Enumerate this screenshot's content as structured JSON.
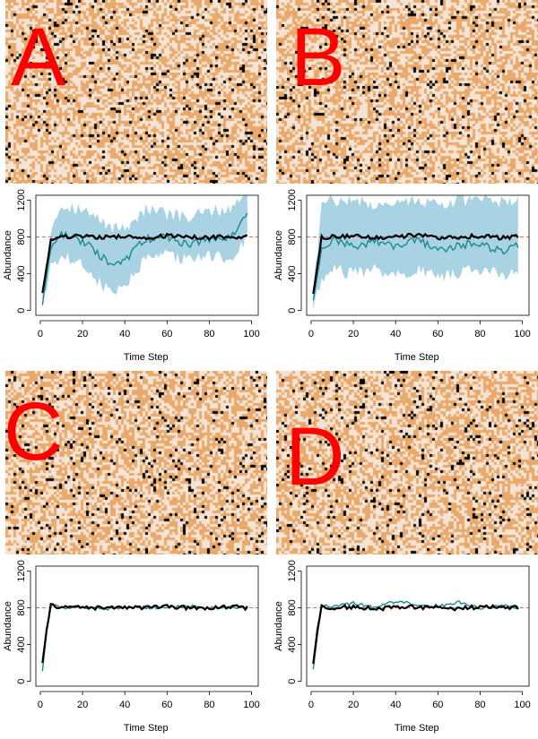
{
  "panels": [
    {
      "letter": "A",
      "grid_seed": 11,
      "band": "wide",
      "mean_series": "mean_a",
      "sim_series": "sim_a"
    },
    {
      "letter": "B",
      "grid_seed": 29,
      "band": "wide_b",
      "mean_series": "mean_b",
      "sim_series": "sim_b"
    },
    {
      "letter": "C",
      "grid_seed": 47,
      "band": "none",
      "mean_series": "mean_c",
      "sim_series": "sim_c"
    },
    {
      "letter": "D",
      "grid_seed": 83,
      "band": "none",
      "mean_series": "mean_d",
      "sim_series": "sim_d"
    }
  ],
  "colors": {
    "grid_orange": "#e8a96b",
    "grid_light": "#f4e4d5",
    "grid_black": "#000000",
    "band": "#a9d3e3",
    "sim_line": "#1b8a8f",
    "mean_line": "#000000",
    "ref_line": "#e05555"
  },
  "chart_data": [
    {
      "panel": "A",
      "type": "line",
      "xlabel": "Time Step",
      "ylabel": "Abundance",
      "xlim": [
        0,
        100
      ],
      "ylim": [
        0,
        1200
      ],
      "xticks": [
        0,
        20,
        40,
        60,
        80,
        100
      ],
      "yticks": [
        0,
        400,
        800,
        1200
      ],
      "reference_line": 800,
      "x": [
        1,
        5,
        10,
        20,
        30,
        35,
        40,
        50,
        60,
        70,
        80,
        90,
        95,
        98
      ],
      "series": [
        {
          "values": [
            190,
            760,
            800,
            810,
            795,
            800,
            805,
            790,
            810,
            800,
            795,
            805,
            800,
            810
          ]
        },
        {
          "values": [
            60,
            700,
            820,
            760,
            560,
            470,
            550,
            780,
            800,
            720,
            780,
            780,
            980,
            1050
          ]
        }
      ],
      "band_upper": [
        200,
        900,
        1150,
        1100,
        950,
        900,
        900,
        1100,
        1050,
        1000,
        1080,
        1100,
        1250,
        1250
      ],
      "band_lower": [
        40,
        500,
        600,
        500,
        250,
        200,
        260,
        550,
        600,
        550,
        600,
        550,
        700,
        800
      ]
    },
    {
      "panel": "B",
      "type": "line",
      "xlabel": "Time Step",
      "ylabel": "Abundance",
      "xlim": [
        0,
        100
      ],
      "ylim": [
        0,
        1200
      ],
      "xticks": [
        0,
        20,
        40,
        60,
        80,
        100
      ],
      "yticks": [
        0,
        400,
        800,
        1200
      ],
      "reference_line": 800,
      "x": [
        1,
        5,
        10,
        20,
        30,
        40,
        50,
        60,
        70,
        80,
        90,
        98
      ],
      "series": [
        {
          "values": [
            180,
            790,
            800,
            810,
            790,
            800,
            820,
            790,
            800,
            810,
            790,
            800
          ]
        },
        {
          "values": [
            110,
            660,
            760,
            690,
            760,
            700,
            780,
            650,
            720,
            720,
            650,
            720
          ]
        }
      ],
      "band_upper": [
        200,
        1150,
        1200,
        1200,
        1150,
        1200,
        1200,
        1150,
        1200,
        1200,
        1180,
        1200
      ],
      "band_lower": [
        40,
        350,
        450,
        400,
        450,
        380,
        450,
        350,
        420,
        450,
        380,
        420
      ]
    },
    {
      "panel": "C",
      "type": "line",
      "xlabel": "Time Step",
      "ylabel": "Abundance",
      "xlim": [
        0,
        100
      ],
      "ylim": [
        0,
        1200
      ],
      "xticks": [
        0,
        20,
        40,
        60,
        80,
        100
      ],
      "yticks": [
        0,
        400,
        800,
        1200
      ],
      "reference_line": 800,
      "x": [
        1,
        3,
        5,
        10,
        20,
        30,
        40,
        50,
        60,
        70,
        80,
        90,
        98
      ],
      "series": [
        {
          "values": [
            200,
            560,
            820,
            810,
            800,
            795,
            805,
            800,
            810,
            800,
            795,
            810,
            800
          ]
        },
        {
          "values": [
            110,
            540,
            830,
            800,
            810,
            790,
            800,
            805,
            800,
            820,
            790,
            800,
            790
          ]
        }
      ]
    },
    {
      "panel": "D",
      "type": "line",
      "xlabel": "Time Step",
      "ylabel": "Abundance",
      "xlim": [
        0,
        100
      ],
      "ylim": [
        0,
        1200
      ],
      "xticks": [
        0,
        20,
        40,
        60,
        80,
        100
      ],
      "yticks": [
        0,
        400,
        800,
        1200
      ],
      "reference_line": 800,
      "x": [
        1,
        3,
        5,
        10,
        20,
        30,
        40,
        50,
        60,
        70,
        80,
        90,
        98
      ],
      "series": [
        {
          "values": [
            190,
            560,
            810,
            800,
            810,
            790,
            800,
            810,
            800,
            790,
            810,
            800,
            805
          ]
        },
        {
          "values": [
            130,
            500,
            830,
            820,
            850,
            800,
            870,
            840,
            820,
            860,
            790,
            830,
            800
          ]
        }
      ]
    }
  ]
}
